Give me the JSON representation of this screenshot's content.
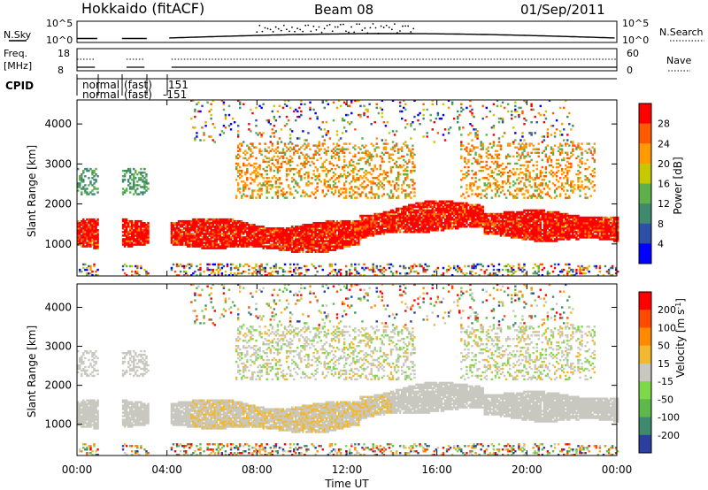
{
  "header": {
    "station": "Hokkaido (fitACF)",
    "beam": "Beam 08",
    "date": "01/Sep/2011"
  },
  "top_panels": {
    "nsky_label": "N.Sky",
    "freq_label_1": "Freq.",
    "freq_label_2": "[MHz]",
    "cpid_label": "CPID",
    "nsearch_label": "N.Search",
    "nave_label": "Nave",
    "nsky_ticks": [
      "10^5",
      "10^0"
    ],
    "freq_ticks": [
      "18",
      "8"
    ],
    "nave_ticks": [
      "60",
      "0"
    ],
    "nsearch_ticks": [
      "10^5",
      "10^0"
    ],
    "cpid_lines": [
      [
        "normal",
        "(fast)",
        "151"
      ],
      [
        "normal",
        "(fast)",
        "-151"
      ]
    ]
  },
  "chart_data": [
    {
      "type": "heatmap",
      "name": "power",
      "ylabel": "Slant Range [km]",
      "xlabel": "Time UT",
      "y_ticks": [
        "1000",
        "2000",
        "3000",
        "4000"
      ],
      "y_values": [
        1000,
        2000,
        3000,
        4000
      ],
      "ylim": [
        200,
        4600
      ],
      "x_ticks": [
        "00:00",
        "04:00",
        "08:00",
        "12:00",
        "16:00",
        "20:00",
        "00:00"
      ],
      "xlim_hours": [
        0,
        24
      ],
      "colorbar_label": "Power [dB]",
      "colorbar_ticks": [
        "4",
        "8",
        "12",
        "16",
        "20",
        "24",
        "28"
      ],
      "colorbar_colors": [
        "#0000ff",
        "#2e4fa8",
        "#3f8a6e",
        "#5fb04a",
        "#c8c800",
        "#ff9a00",
        "#ff5a00",
        "#ff0000"
      ],
      "main_band": {
        "range_km": [
          900,
          1600
        ],
        "hours": [
          0,
          24
        ],
        "level_db": 26
      }
    },
    {
      "type": "heatmap",
      "name": "velocity",
      "ylabel": "Slant Range [km]",
      "xlabel": "Time UT",
      "y_ticks": [
        "1000",
        "2000",
        "3000",
        "4000"
      ],
      "y_values": [
        1000,
        2000,
        3000,
        4000
      ],
      "ylim": [
        200,
        4600
      ],
      "x_ticks": [
        "00:00",
        "04:00",
        "08:00",
        "12:00",
        "16:00",
        "20:00",
        "00:00"
      ],
      "xlim_hours": [
        0,
        24
      ],
      "colorbar_label": "Velocity [m s",
      "colorbar_label_sup": "-1",
      "colorbar_label_end": "]",
      "colorbar_ticks": [
        "200",
        "100",
        "50",
        "15",
        "-15",
        "-50",
        "-100",
        "-200"
      ],
      "colorbar_colors": [
        "#2a3fa0",
        "#3f8a6e",
        "#5fb84a",
        "#7fd84a",
        "#c8c8c0",
        "#f2b830",
        "#ff8a00",
        "#ff4a00",
        "#ff0000"
      ],
      "ground_scatter_color": "#c8c8c0"
    }
  ]
}
